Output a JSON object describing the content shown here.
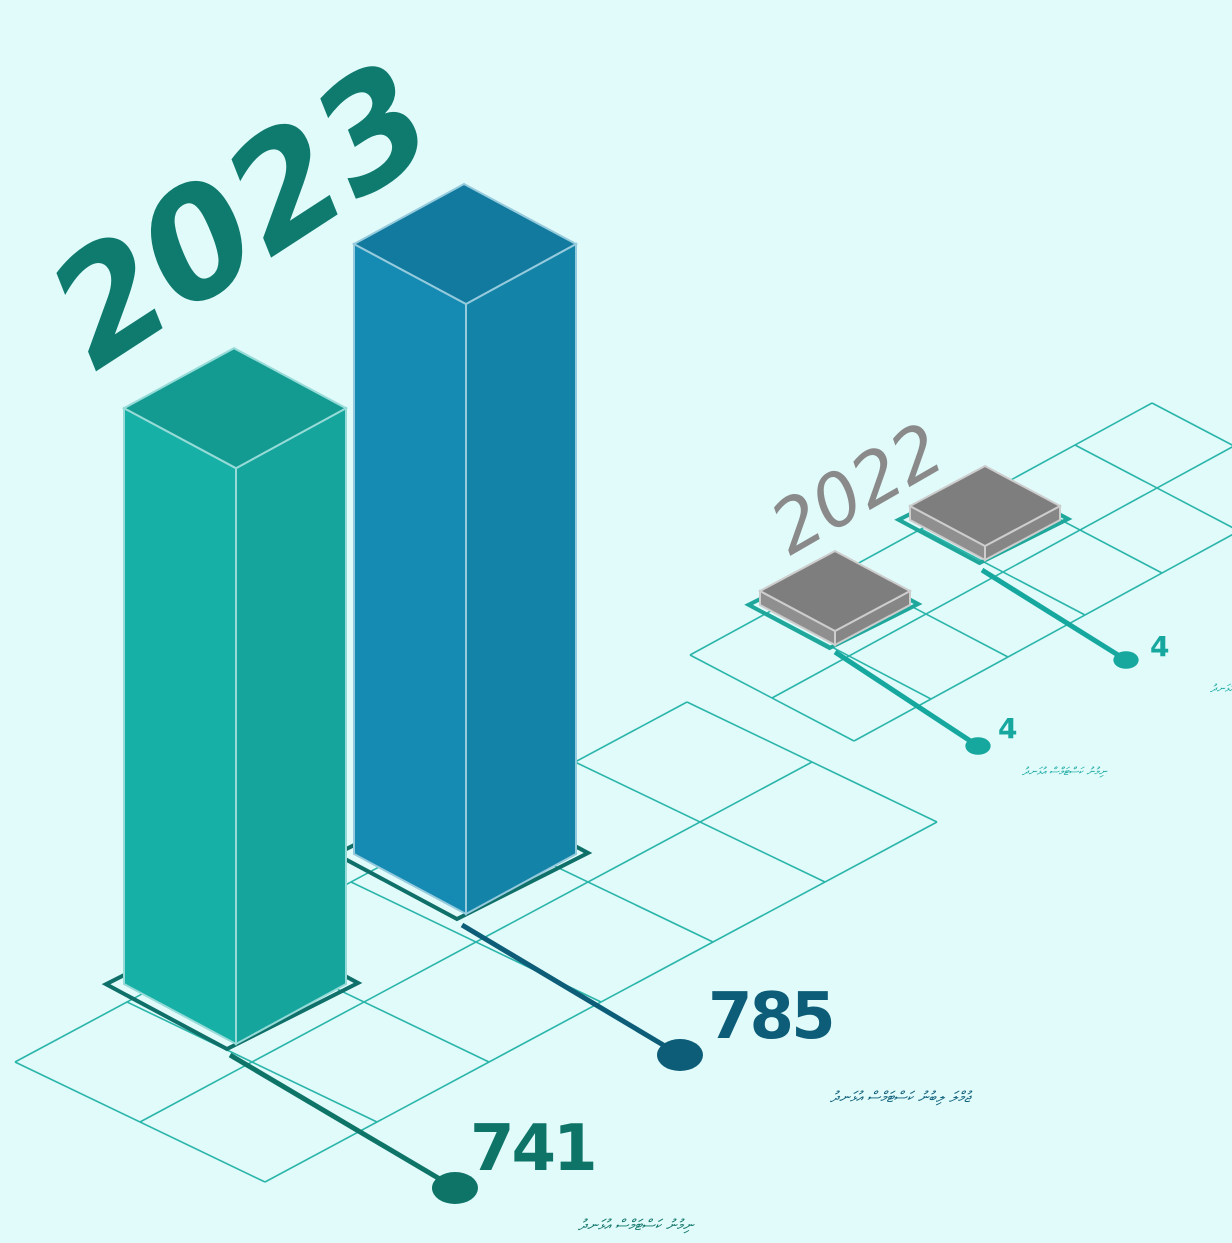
{
  "chart_data": [
    {
      "type": "bar",
      "title": "2023",
      "categories": [
        "ނިމުނު ކަސްޓަމްސް އުޅަނދު",
        "ޖުމްލަ ލިބުނު ކަސްޓަމްސް އުޅަނދު"
      ],
      "values": [
        741,
        785
      ],
      "value_labels": [
        "741",
        "785"
      ],
      "colors": [
        "#16b0a6",
        "#158bb3"
      ],
      "value_colors": [
        "#0e7468",
        "#0d5d78"
      ]
    },
    {
      "type": "bar",
      "title": "2022",
      "categories": [
        "ނިމުނު ކަސްޓަމްސް އުޅަނދު",
        "ޖުމްލަ ލިބުނު ކަސްޓަމްސް އުޅަނދު"
      ],
      "values": [
        4,
        4
      ],
      "value_labels": [
        "4",
        "4"
      ],
      "colors": [
        "#8f8f8f",
        "#8f8f8f"
      ],
      "value_colors": [
        "#16a89f",
        "#16a89f"
      ]
    }
  ],
  "colors": {
    "background": "#e0fbfa",
    "grid_line": "#2bb5aa",
    "year_2023": "#0f7a6e",
    "year_2022": "#8a8a8a"
  }
}
